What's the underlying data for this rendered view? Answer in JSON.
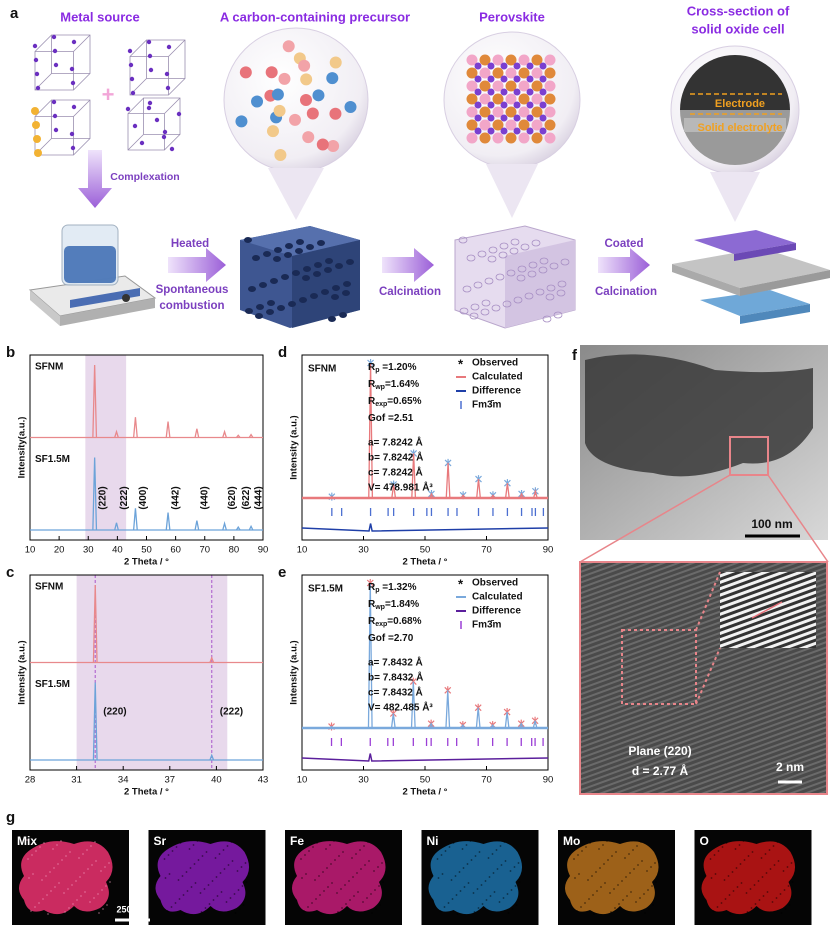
{
  "panel_a": {
    "label": "a",
    "metal_source": "Metal source",
    "complexation": "Complexation",
    "precursor": "A carbon-containing precursor",
    "heated": "Heated",
    "spontaneous": "Spontaneous",
    "combustion": "combustion",
    "calcination_1": "Calcination",
    "perovskite": "Perovskite",
    "coated": "Coated",
    "calcination_2": "Calcination",
    "cell_title_1": "Cross-section of",
    "cell_title_2": "solid oxide cell",
    "electrode": "Electrode",
    "electrolyte": "Solid electrolyte"
  },
  "chart_data": [
    {
      "type": "xrd",
      "panel": "b",
      "xlabel": "2 Theta / °",
      "ylabel": "Intensity(a.u.)",
      "xlim": [
        10,
        90
      ],
      "xticks": [
        10,
        20,
        30,
        40,
        50,
        60,
        70,
        80,
        90
      ],
      "ylim": [
        0,
        100
      ],
      "highlight": [
        29,
        43
      ],
      "highlight_color": "#d9bfe0",
      "label_rotation": -90,
      "series": [
        {
          "name": "SFNM",
          "color": "#e8898c",
          "x": [
            32.2,
            39.7,
            46.2,
            57.4,
            67.3,
            76.8,
            81.5,
            85.9
          ],
          "values": [
            100,
            8,
            28,
            22,
            12,
            8,
            3,
            4
          ]
        },
        {
          "name": "SF1.5M",
          "color": "#6ca3d9",
          "x": [
            32.2,
            39.7,
            46.2,
            57.4,
            67.3,
            76.8,
            81.5,
            85.9
          ],
          "values": [
            100,
            10,
            30,
            24,
            13,
            9,
            4,
            5
          ]
        }
      ],
      "peak_labels": [
        {
          "text": "(220)",
          "x": 32.2
        },
        {
          "text": "(222)",
          "x": 39.7
        },
        {
          "text": "(400)",
          "x": 46.2
        },
        {
          "text": "(442)",
          "x": 57.4
        },
        {
          "text": "(440)",
          "x": 67.3
        },
        {
          "text": "(620)",
          "x": 76.8
        },
        {
          "text": "(622)",
          "x": 81.5
        },
        {
          "text": "(444)",
          "x": 85.9
        }
      ]
    },
    {
      "type": "xrd",
      "panel": "c",
      "xlabel": "2 Theta / °",
      "ylabel": "Intensity (a.u.)",
      "xlim": [
        28,
        43
      ],
      "xticks": [
        28,
        31,
        34,
        37,
        40,
        43
      ],
      "ylim": [
        0,
        100
      ],
      "highlight": [
        31,
        40.7
      ],
      "highlight_color": "#d9bfe0",
      "label_rotation": 0,
      "reference_lines": [
        32.2,
        39.7
      ],
      "reference_color": "#b36bd1",
      "series": [
        {
          "name": "SFNM",
          "color": "#e8898c",
          "x": [
            32.2,
            39.7
          ],
          "values": [
            100,
            6
          ]
        },
        {
          "name": "SF1.5M",
          "color": "#6ca3d9",
          "x": [
            32.2,
            39.7
          ],
          "values": [
            100,
            6
          ]
        }
      ],
      "peak_labels": [
        {
          "text": "(220)",
          "x": 32.2
        },
        {
          "text": "(222)",
          "x": 39.7
        }
      ]
    },
    {
      "type": "refinement",
      "panel": "d",
      "title": "SFNM",
      "xlabel": "2 Theta / °",
      "ylabel": "Intensity (a.u.)",
      "xlim": [
        10,
        90
      ],
      "xticks": [
        10,
        30,
        50,
        70,
        90
      ],
      "ylim": [
        0,
        100
      ],
      "stats": [
        {
          "symbol": "R",
          "sub": "p",
          "text": " =1.20%"
        },
        {
          "symbol": "R",
          "sub": "wp",
          "text": "=1.64%"
        },
        {
          "symbol": "R",
          "sub": "exp",
          "text": "=0.65%"
        },
        {
          "symbol": "Gof",
          "sub": "",
          "text": " =2.51"
        }
      ],
      "lattice": [
        "a= 7.8242 Å",
        "b= 7.8242 Å",
        "c= 7.8242 Å",
        "V= 478.981 Å³"
      ],
      "series": [
        {
          "name": "Observed",
          "style": "markers",
          "color": "#7aa9dc",
          "x": [
            19.7,
            32.3,
            39.8,
            46.3,
            52.1,
            57.5,
            62.4,
            67.4,
            72.1,
            76.8,
            81.4,
            85.9
          ],
          "values": [
            1,
            100,
            10,
            33,
            3,
            26,
            2,
            14,
            2,
            11,
            3,
            5
          ]
        },
        {
          "name": "Calculated",
          "style": "line",
          "color": "#e8797c",
          "x": [
            19.7,
            32.3,
            39.8,
            46.3,
            52.1,
            57.5,
            62.4,
            67.4,
            72.1,
            76.8,
            81.4,
            85.9
          ],
          "values": [
            1,
            100,
            10,
            33,
            3,
            26,
            2,
            14,
            2,
            11,
            3,
            5
          ]
        },
        {
          "name": "Difference",
          "style": "difference",
          "color": "#1f3fa8",
          "x": [
            10,
            31.8,
            32.3,
            32.8,
            90
          ],
          "values": [
            0,
            -2,
            3,
            -2,
            0
          ]
        },
        {
          "name": "Fm3̄m",
          "style": "ticks",
          "color": "#4c6fd1",
          "x": [
            19.7,
            22.9,
            32.3,
            38.0,
            39.8,
            46.3,
            50.6,
            52.1,
            57.5,
            60.4,
            67.4,
            72.1,
            76.8,
            81.4,
            84.8,
            85.9,
            88.5
          ]
        }
      ]
    },
    {
      "type": "refinement",
      "panel": "e",
      "title": "SF1.5M",
      "xlabel": "2 Theta / °",
      "ylabel": "Intensity (a.u.)",
      "xlim": [
        10,
        90
      ],
      "xticks": [
        10,
        30,
        50,
        70,
        90
      ],
      "ylim": [
        0,
        100
      ],
      "stats": [
        {
          "symbol": "R",
          "sub": "p",
          "text": " =1.32%"
        },
        {
          "symbol": "R",
          "sub": "wp",
          "text": "=1.84%"
        },
        {
          "symbol": "R",
          "sub": "exp",
          "text": "=0.68%"
        },
        {
          "symbol": "Gof",
          "sub": "",
          "text": " =2.70"
        }
      ],
      "lattice": [
        "a= 7.8432 Å",
        "b= 7.8432 Å",
        "c= 7.8432 Å",
        "V= 482.485 Å³"
      ],
      "series": [
        {
          "name": "Observed",
          "style": "markers",
          "color": "#e8797c",
          "x": [
            19.6,
            32.2,
            39.7,
            46.2,
            52.0,
            57.4,
            62.3,
            67.3,
            72.0,
            76.7,
            81.3,
            85.8
          ],
          "values": [
            1,
            100,
            10,
            32,
            3,
            26,
            2,
            14,
            2,
            11,
            3,
            5
          ]
        },
        {
          "name": "Calculated",
          "style": "line",
          "color": "#7aa9dc",
          "x": [
            19.6,
            32.2,
            39.7,
            46.2,
            52.0,
            57.4,
            62.3,
            67.3,
            72.0,
            76.7,
            81.3,
            85.8
          ],
          "values": [
            1,
            100,
            10,
            32,
            3,
            26,
            2,
            14,
            2,
            11,
            3,
            5
          ]
        },
        {
          "name": "Difference",
          "style": "difference",
          "color": "#5b1f9c",
          "x": [
            10,
            31.7,
            32.2,
            32.7,
            90
          ],
          "values": [
            0,
            -2,
            3,
            -2,
            0
          ]
        },
        {
          "name": "Fm3̄m",
          "style": "ticks",
          "color": "#9b3fd6",
          "x": [
            19.6,
            22.8,
            32.2,
            37.9,
            39.7,
            46.2,
            50.5,
            52.0,
            57.4,
            60.3,
            67.3,
            72.0,
            76.7,
            81.3,
            84.7,
            85.8,
            88.4
          ]
        }
      ]
    }
  ],
  "panel_f": {
    "label": "f",
    "scale_top": "100 nm",
    "plane": "Plane (220)",
    "d_spacing": "d = 2.77 Å",
    "scale_bottom": "2 nm"
  },
  "panel_g": {
    "label": "g",
    "scale": "250 nm",
    "maps": [
      {
        "label": "Mix",
        "color": "#e0306a"
      },
      {
        "label": "Sr",
        "color": "#9b20d0"
      },
      {
        "label": "Fe",
        "color": "#e0208a"
      },
      {
        "label": "Ni",
        "color": "#2080c0"
      },
      {
        "label": "Mo",
        "color": "#d08020"
      },
      {
        "label": "O",
        "color": "#e01818"
      }
    ]
  }
}
